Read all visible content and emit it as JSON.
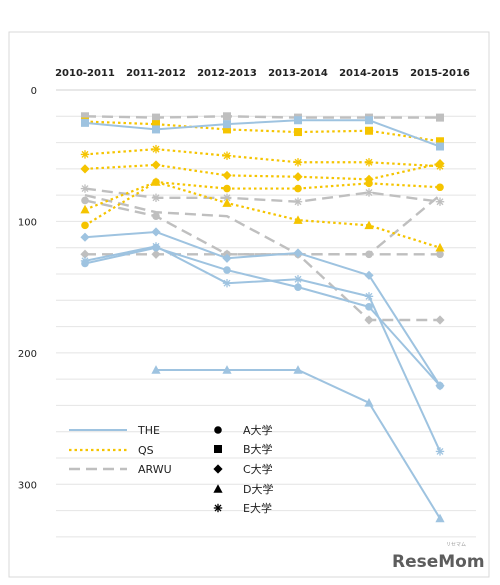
{
  "chart_data": {
    "type": "line",
    "categories": [
      "2010-2011",
      "2011-2012",
      "2012-2013",
      "2013-2014",
      "2014-2015",
      "2015-2016"
    ],
    "y_axis": {
      "ticks": [
        0,
        100,
        200,
        300
      ],
      "ylim": [
        0,
        350
      ],
      "inverted": true,
      "gridlines": true
    },
    "rankings": [
      {
        "name": "THE",
        "color": "#9ec3e0",
        "dash": "solid"
      },
      {
        "name": "QS",
        "color": "#f5c400",
        "dash": "dotted"
      },
      {
        "name": "ARWU",
        "color": "#bfbfbf",
        "dash": "dashed"
      }
    ],
    "universities": [
      {
        "name": "A大学",
        "marker": "circle"
      },
      {
        "name": "B大学",
        "marker": "square"
      },
      {
        "name": "C大学",
        "marker": "diamond"
      },
      {
        "name": "D大学",
        "marker": "triangle"
      },
      {
        "name": "E大学",
        "marker": "asterisk"
      }
    ],
    "series": [
      {
        "ranking": "THE",
        "university": "A大学",
        "values": [
          132,
          120,
          137,
          150,
          165,
          225
        ]
      },
      {
        "ranking": "THE",
        "university": "B大学",
        "values": [
          25,
          30,
          26,
          23,
          23,
          43
        ]
      },
      {
        "ranking": "THE",
        "university": "C大学",
        "values": [
          112,
          108,
          128,
          124,
          141,
          225
        ]
      },
      {
        "ranking": "THE",
        "university": "D大学",
        "values": [
          null,
          213,
          213,
          213,
          238,
          326
        ]
      },
      {
        "ranking": "THE",
        "university": "E大学",
        "values": [
          130,
          119,
          147,
          144,
          157,
          275
        ]
      },
      {
        "ranking": "QS",
        "university": "A大学",
        "values": [
          103,
          70,
          75,
          75,
          71,
          74
        ]
      },
      {
        "ranking": "QS",
        "university": "B大学",
        "values": [
          24,
          26,
          30,
          32,
          31,
          39
        ]
      },
      {
        "ranking": "QS",
        "university": "C大学",
        "values": [
          60,
          57,
          65,
          66,
          68,
          56
        ]
      },
      {
        "ranking": "QS",
        "university": "D大学",
        "values": [
          91,
          70,
          86,
          99,
          103,
          120
        ]
      },
      {
        "ranking": "QS",
        "university": "E大学",
        "values": [
          49,
          45,
          50,
          55,
          55,
          58
        ]
      },
      {
        "ranking": "ARWU",
        "university": "A大学",
        "values": [
          84,
          96,
          125,
          125,
          125,
          125
        ]
      },
      {
        "ranking": "ARWU",
        "university": "B大学",
        "values": [
          20,
          21,
          20,
          21,
          21,
          21
        ]
      },
      {
        "ranking": "ARWU",
        "university": "C大学",
        "values": [
          125,
          125,
          125,
          125,
          175,
          175
        ]
      },
      {
        "ranking": "ARWU",
        "university": "E大学",
        "values": [
          75,
          82,
          82,
          85,
          78,
          85
        ]
      },
      {
        "ranking": "ARWU",
        "university": "",
        "values": [
          80,
          93,
          96,
          125,
          125,
          80
        ]
      }
    ]
  },
  "watermark": {
    "logo": "ReseMom",
    "small_text": "リセマム"
  }
}
